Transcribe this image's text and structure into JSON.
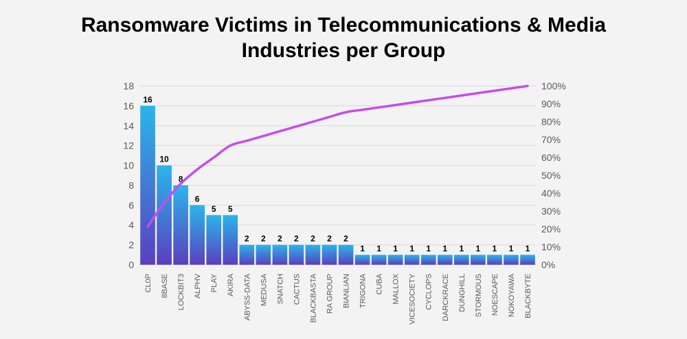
{
  "chart_data": {
    "type": "bar",
    "title_line1": "Ransomware Victims in Telecommunications & Media",
    "title_line2": "Industries per Group",
    "categories": [
      "CL0P",
      "8BASE",
      "LOCKBIT3",
      "ALPHV",
      "PLAY",
      "AKIRA",
      "ABYSS-DATA",
      "MEDUSA",
      "SNATCH",
      "CACTUS",
      "BLACKBASTA",
      "RA GROUP",
      "BIANLIAN",
      "TRIGONA",
      "CUBA",
      "MALLOX",
      "VICESOCIETY",
      "CYCLOPS",
      "DARCKRACE",
      "DUNGHILL",
      "STORMOUS",
      "NOESCAPE",
      "NOKOYAWA",
      "BLACKBYTE"
    ],
    "values": [
      16,
      10,
      8,
      6,
      5,
      5,
      2,
      2,
      2,
      2,
      2,
      2,
      2,
      1,
      1,
      1,
      1,
      1,
      1,
      1,
      1,
      1,
      1,
      1
    ],
    "cumulative_percent_line": true,
    "ylim": [
      0,
      18
    ],
    "y_ticks": [
      0,
      2,
      4,
      6,
      8,
      10,
      12,
      14,
      16,
      18
    ],
    "y2lim": [
      0,
      100
    ],
    "y2_ticks": [
      "0%",
      "10%",
      "20%",
      "30%",
      "40%",
      "50%",
      "60%",
      "70%",
      "80%",
      "90%",
      "100%"
    ],
    "grid": true,
    "colors": {
      "bar_top": "#2bb5ea",
      "bar_bottom": "#5a3fc0",
      "line": "#c44cf0",
      "grid": "#d9d9d9"
    }
  }
}
